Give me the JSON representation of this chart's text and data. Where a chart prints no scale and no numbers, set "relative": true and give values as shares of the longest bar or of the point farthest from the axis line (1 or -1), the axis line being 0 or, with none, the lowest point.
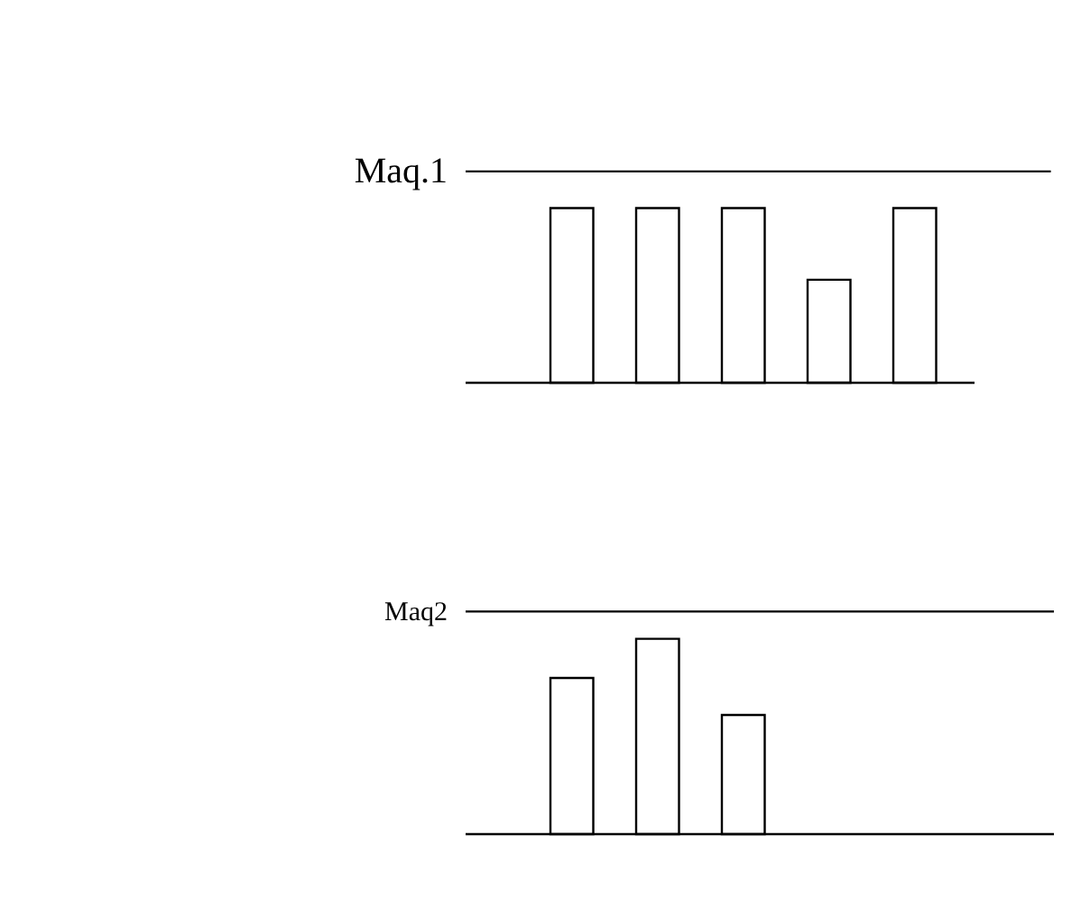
{
  "chart_data": [
    {
      "type": "bar",
      "relative": true,
      "tick_labels": false,
      "grid": false,
      "categories": [
        null,
        null,
        null,
        null,
        null
      ],
      "values": [
        1,
        1,
        1,
        0.59,
        1
      ],
      "color": "#ffffff",
      "ref_lines": [
        {
          "axis": "y",
          "value": 1.21,
          "label": "Maq.1"
        }
      ]
    },
    {
      "type": "bar",
      "relative": true,
      "tick_labels": false,
      "grid": false,
      "categories": [
        null,
        null,
        null
      ],
      "values": [
        0.8,
        1,
        0.61
      ],
      "color": "#ffffff",
      "ref_lines": [
        {
          "axis": "y",
          "value": 1.14,
          "label": "Maq2"
        }
      ]
    }
  ]
}
